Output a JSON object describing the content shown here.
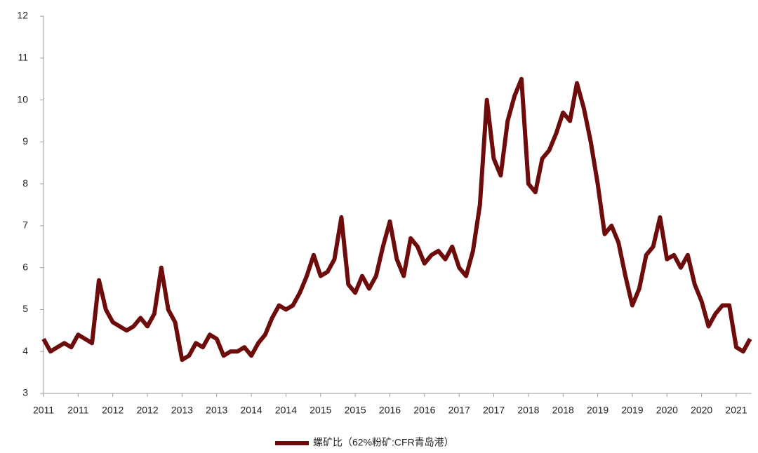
{
  "chart_data": {
    "type": "line",
    "categories": [
      "2011",
      null,
      null,
      null,
      null,
      "2011",
      null,
      null,
      null,
      null,
      "2012",
      null,
      null,
      null,
      null,
      "2012",
      null,
      null,
      null,
      null,
      "2013",
      null,
      null,
      null,
      null,
      "2013",
      null,
      null,
      null,
      null,
      "2014",
      null,
      null,
      null,
      null,
      "2014",
      null,
      null,
      null,
      null,
      "2015",
      null,
      null,
      null,
      null,
      "2015",
      null,
      null,
      null,
      null,
      "2016",
      null,
      null,
      null,
      null,
      "2016",
      null,
      null,
      null,
      null,
      "2017",
      null,
      null,
      null,
      null,
      "2017",
      null,
      null,
      null,
      null,
      "2018",
      null,
      null,
      null,
      null,
      "2018",
      null,
      null,
      null,
      null,
      "2019",
      null,
      null,
      null,
      null,
      "2019",
      null,
      null,
      null,
      null,
      "2020",
      null,
      null,
      null,
      null,
      "2020",
      null,
      null,
      null,
      null,
      "2021",
      null,
      null
    ],
    "series": [
      {
        "name": "螺矿比（62%粉矿:CFR青岛港）",
        "color": "#6e0c0c",
        "values": [
          4.3,
          4.0,
          4.1,
          4.2,
          4.1,
          4.4,
          4.3,
          4.2,
          5.7,
          5.0,
          4.7,
          4.6,
          4.5,
          4.6,
          4.8,
          4.6,
          4.9,
          6.0,
          5.0,
          4.7,
          3.8,
          3.9,
          4.2,
          4.1,
          4.4,
          4.3,
          3.9,
          4.0,
          4.0,
          4.1,
          3.9,
          4.2,
          4.4,
          4.8,
          5.1,
          5.0,
          5.1,
          5.4,
          5.8,
          6.3,
          5.8,
          5.9,
          6.2,
          7.2,
          5.6,
          5.4,
          5.8,
          5.5,
          5.8,
          6.5,
          7.1,
          6.2,
          5.8,
          6.7,
          6.5,
          6.1,
          6.3,
          6.4,
          6.2,
          6.5,
          6.0,
          5.8,
          6.4,
          7.5,
          10.0,
          8.6,
          8.2,
          9.5,
          10.1,
          10.5,
          8.0,
          7.8,
          8.6,
          8.8,
          9.2,
          9.7,
          9.5,
          10.4,
          9.8,
          9.0,
          8.0,
          6.8,
          7.0,
          6.6,
          5.8,
          5.1,
          5.5,
          6.3,
          6.5,
          7.2,
          6.2,
          6.3,
          6.0,
          6.3,
          5.6,
          5.2,
          4.6,
          4.9,
          5.1,
          5.1,
          4.1,
          4.0,
          4.3
        ]
      }
    ],
    "ylim": [
      3,
      12
    ],
    "yticks": [
      3,
      4,
      5,
      6,
      7,
      8,
      9,
      10,
      11,
      12
    ],
    "legend": "bottom"
  }
}
